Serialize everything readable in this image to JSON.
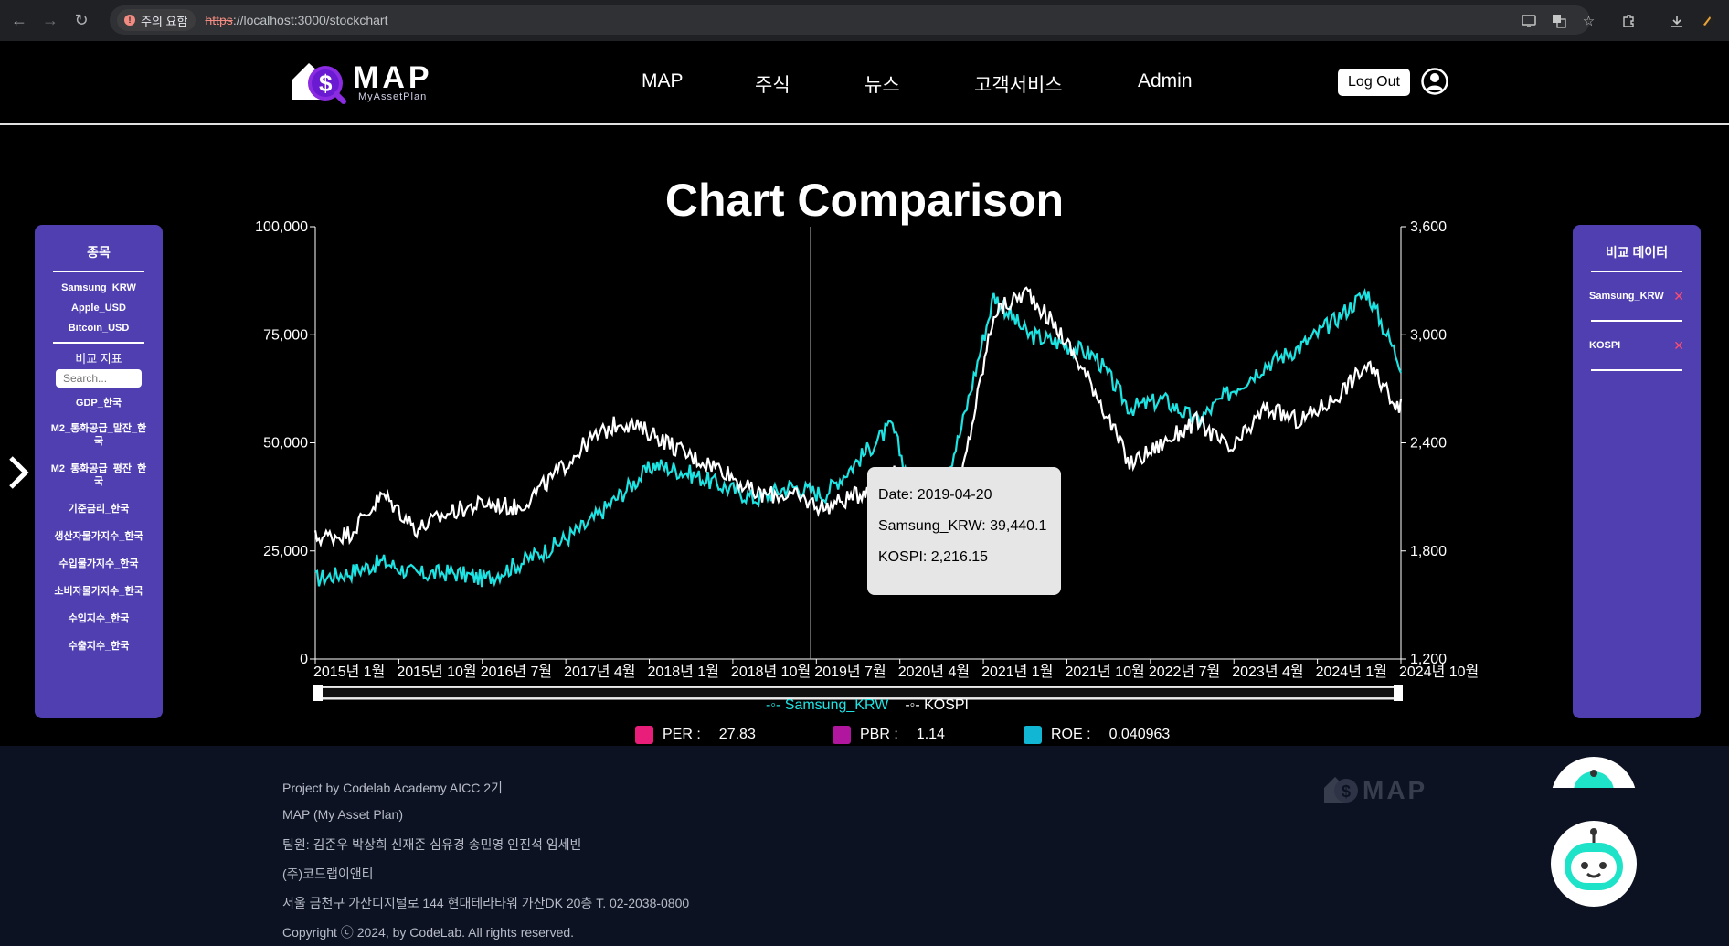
{
  "browser": {
    "warning_label": "주의 요함",
    "url_protocol": "https",
    "url_rest": "://localhost:3000/stockchart"
  },
  "header": {
    "logo_text": "MAP",
    "logo_subtext": "MyAssetPlan",
    "nav": [
      "MAP",
      "주식",
      "뉴스",
      "고객서비스",
      "Admin"
    ],
    "logout_label": "Log Out"
  },
  "page_title": "Chart Comparison",
  "left_panel": {
    "stocks_heading": "종목",
    "stocks": [
      "Samsung_KRW",
      "Apple_USD",
      "Bitcoin_USD"
    ],
    "indicators_heading": "비교 지표",
    "search_placeholder": "Search...",
    "indicators": [
      "GDP_한국",
      "M2_통화공급_말잔_한국",
      "M2_통화공급_평잔_한국",
      "기준금리_한국",
      "생산자물가지수_한국",
      "수입물가지수_한국",
      "소비자물가지수_한국",
      "수입지수_한국",
      "수출지수_한국"
    ]
  },
  "right_panel": {
    "heading": "비교 데이터",
    "items": [
      "Samsung_KRW",
      "KOSPI"
    ],
    "remove_glyph": "✕"
  },
  "tooltip": {
    "date_line": "Date: 2019-04-20",
    "samsung_line": "Samsung_KRW: 39,440.1",
    "kospi_line": "KOSPI: 2,216.15"
  },
  "metrics": [
    {
      "label": "PER :",
      "value": "27.83",
      "color": "#e91e7a"
    },
    {
      "label": "PBR :",
      "value": "1.14",
      "color": "#b0179e"
    },
    {
      "label": "ROE :",
      "value": "0.040963",
      "color": "#10b6d4"
    }
  ],
  "footer": {
    "lines": [
      "Project by Codelab Academy AICC 2기",
      "MAP (My Asset Plan)",
      "팀원: 김준우 박상희 신재준 심유경 송민영 인진석 임세빈",
      "(주)코드랩이앤티",
      "서울 금천구 가산디지털로 144 현대테라타워 가산DK 20층 T. 02-2038-0800",
      "Copyright ⓒ 2024, by CodeLab. All rights reserved."
    ]
  },
  "colors": {
    "samsung": "#1ee3e3",
    "kospi": "#ffffff",
    "panel": "#4f3fb1"
  },
  "chart_data": {
    "type": "line",
    "x_ticks": [
      "2015년 1월",
      "2015년 10월",
      "2016년 7월",
      "2017년 4월",
      "2018년 1월",
      "2018년 10월",
      "2019년 7월",
      "2020년 4월",
      "2021년 1월",
      "2021년 10월",
      "2022년 7월",
      "2023년 4월",
      "2024년 1월",
      "2024년 10월"
    ],
    "y_left": {
      "ticks": [
        "0",
        "25,000",
        "50,000",
        "75,000",
        "100,000"
      ],
      "range": [
        0,
        100000
      ]
    },
    "y_right": {
      "ticks": [
        "1,200",
        "1,800",
        "2,400",
        "3,000",
        "3,600"
      ],
      "range": [
        1200,
        3600
      ]
    },
    "series": [
      {
        "name": "Samsung_KRW",
        "axis": "left",
        "color": "#1ee3e3",
        "values": [
          18500,
          20000,
          22500,
          19500,
          20000,
          18500,
          22000,
          26000,
          31000,
          38000,
          45000,
          43000,
          40000,
          37000,
          40000,
          38000,
          46000,
          54000,
          28000,
          52000,
          84000,
          75000,
          73000,
          70000,
          58000,
          60000,
          55000,
          62000,
          68000,
          72000,
          78000,
          85000,
          68000
        ]
      },
      {
        "name": "KOSPI",
        "axis": "left",
        "color": "#ffffff",
        "values": [
          28000,
          29000,
          38000,
          30000,
          34000,
          36000,
          35000,
          42000,
          50000,
          55000,
          52000,
          47000,
          44000,
          38000,
          38000,
          35000,
          38000,
          44000,
          26000,
          40000,
          80000,
          85000,
          75000,
          62000,
          45000,
          50000,
          55000,
          48000,
          58000,
          55000,
          60000,
          68000,
          58000
        ]
      }
    ],
    "hover_date": "2019-04-20",
    "legend": [
      "Samsung_KRW",
      "KOSPI"
    ],
    "legend_position": "bottom"
  }
}
